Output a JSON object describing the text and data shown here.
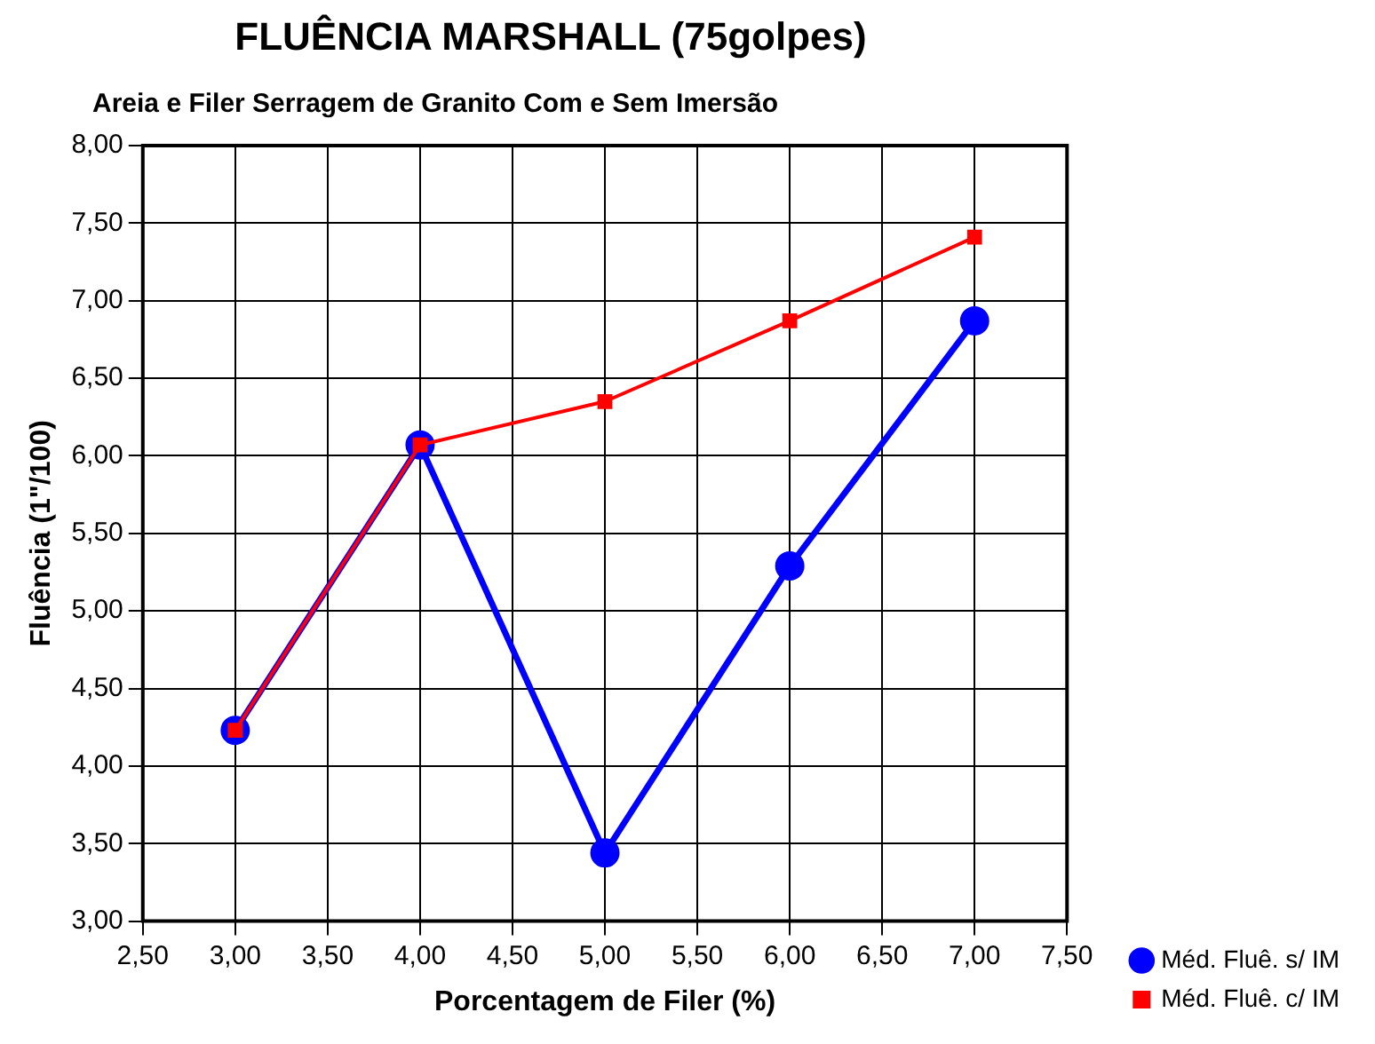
{
  "chart_data": {
    "type": "line",
    "title": "FLUÊNCIA MARSHALL (75golpes)",
    "subtitle": "Areia e Filer Serragem de Granito Com e Sem Imersão",
    "xlabel": "Porcentagem de Filer (%)",
    "ylabel": "Fluência (1\"/100)",
    "x": [
      3,
      4,
      5,
      6,
      7
    ],
    "series": [
      {
        "name": "Méd. Fluê. s/ IM",
        "color": "#0000ff",
        "marker": "circle",
        "values": [
          4.23,
          6.07,
          3.44,
          5.29,
          6.87
        ]
      },
      {
        "name": "Méd. Fluê. c/ IM",
        "color": "#ff0000",
        "marker": "square",
        "values": [
          4.23,
          6.07,
          6.35,
          6.87,
          7.41
        ]
      }
    ],
    "xlim": [
      2.5,
      7.5
    ],
    "xticks": [
      {
        "value": 2.5,
        "label": "2,50"
      },
      {
        "value": 3,
        "label": "3,00"
      },
      {
        "value": 3.5,
        "label": "3,50"
      },
      {
        "value": 4,
        "label": "4,00"
      },
      {
        "value": 4.5,
        "label": "4,50"
      },
      {
        "value": 5,
        "label": "5,00"
      },
      {
        "value": 5.5,
        "label": "5,50"
      },
      {
        "value": 6,
        "label": "6,00"
      },
      {
        "value": 6.5,
        "label": "6,50"
      },
      {
        "value": 7,
        "label": "7,00"
      },
      {
        "value": 7.5,
        "label": "7,50"
      }
    ],
    "ylim": [
      3,
      8
    ],
    "yticks": [
      {
        "value": 3,
        "label": "3,00"
      },
      {
        "value": 3.5,
        "label": "3,50"
      },
      {
        "value": 4,
        "label": "4,00"
      },
      {
        "value": 4.5,
        "label": "4,50"
      },
      {
        "value": 5,
        "label": "5,00"
      },
      {
        "value": 5.5,
        "label": "5,50"
      },
      {
        "value": 6,
        "label": "6,00"
      },
      {
        "value": 6.5,
        "label": "6,50"
      },
      {
        "value": 7,
        "label": "7,00"
      },
      {
        "value": 7.5,
        "label": "7,50"
      },
      {
        "value": 8,
        "label": "8,00"
      }
    ],
    "grid": true,
    "legend": "bottom right",
    "line_style": "solid"
  }
}
